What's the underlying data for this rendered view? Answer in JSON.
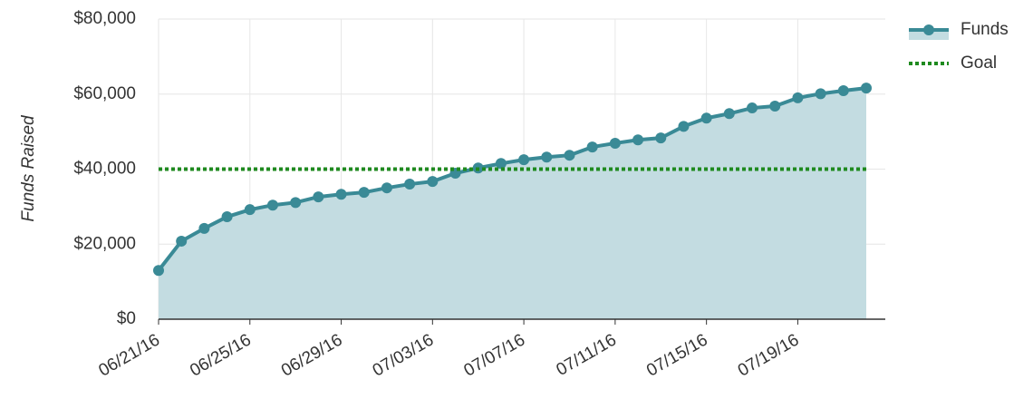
{
  "chart_data": {
    "type": "area-line",
    "y_label": "Funds Raised",
    "x": [
      "2016-06-21",
      "2016-06-22",
      "2016-06-23",
      "2016-06-24",
      "2016-06-25",
      "2016-06-26",
      "2016-06-27",
      "2016-06-28",
      "2016-06-29",
      "2016-06-30",
      "2016-07-01",
      "2016-07-02",
      "2016-07-03",
      "2016-07-04",
      "2016-07-05",
      "2016-07-06",
      "2016-07-07",
      "2016-07-08",
      "2016-07-09",
      "2016-07-10",
      "2016-07-11",
      "2016-07-12",
      "2016-07-13",
      "2016-07-14",
      "2016-07-15",
      "2016-07-16",
      "2016-07-17",
      "2016-07-18",
      "2016-07-19",
      "2016-07-20",
      "2016-07-21",
      "2016-07-22"
    ],
    "series": [
      {
        "name": "Funds",
        "color": "#3a8a96",
        "fill": "#c3dce1",
        "values": [
          13000,
          20800,
          24200,
          27300,
          29200,
          30400,
          31100,
          32600,
          33300,
          33800,
          35000,
          36000,
          36700,
          38900,
          40300,
          41500,
          42500,
          43200,
          43700,
          45900,
          46900,
          47800,
          48300,
          51400,
          53600,
          54800,
          56300,
          56800,
          59000,
          60100,
          60900,
          61600
        ]
      }
    ],
    "goal": {
      "name": "Goal",
      "color": "#1f8a1f",
      "value": 40000
    },
    "xlim": [
      "2016-06-21",
      "2016-07-22"
    ],
    "xticks": [
      {
        "value": "2016-06-21",
        "label": "06/21/16"
      },
      {
        "value": "2016-06-25",
        "label": "06/25/16"
      },
      {
        "value": "2016-06-29",
        "label": "06/29/16"
      },
      {
        "value": "2016-07-03",
        "label": "07/03/16"
      },
      {
        "value": "2016-07-07",
        "label": "07/07/16"
      },
      {
        "value": "2016-07-11",
        "label": "07/11/16"
      },
      {
        "value": "2016-07-15",
        "label": "07/15/16"
      },
      {
        "value": "2016-07-19",
        "label": "07/19/16"
      }
    ],
    "ylim": [
      0,
      80000
    ],
    "yticks": [
      {
        "value": 0,
        "label": "$0"
      },
      {
        "value": 20000,
        "label": "$20,000"
      },
      {
        "value": 40000,
        "label": "$40,000"
      },
      {
        "value": 60000,
        "label": "$60,000"
      },
      {
        "value": 80000,
        "label": "$80,000"
      }
    ],
    "grid": true,
    "legend": "top-right"
  }
}
